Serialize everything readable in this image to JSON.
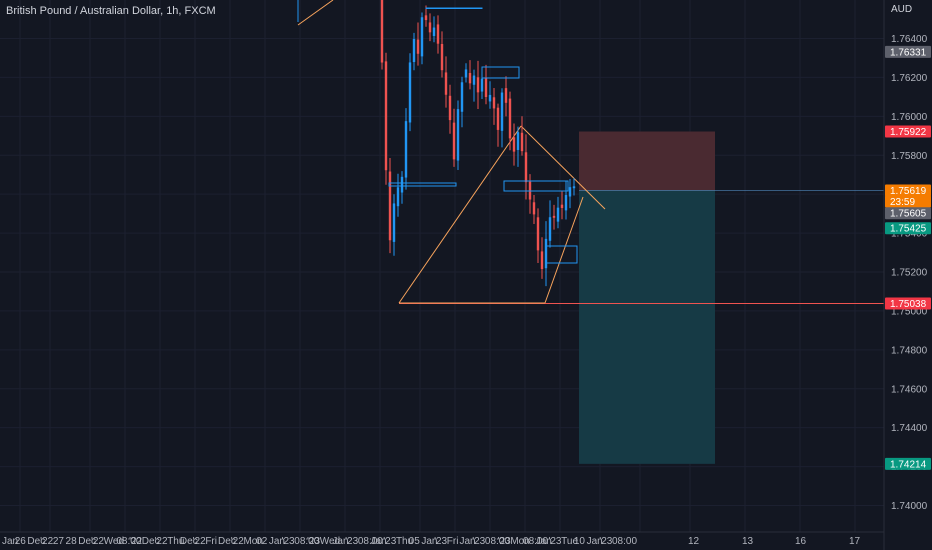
{
  "header": {
    "title": "British Pound / Australian Dollar, 1h, FXCM",
    "currency": "AUD"
  },
  "chart_data": {
    "type": "candlestick",
    "ylim": [
      1.7393,
      1.765
    ],
    "y_ticks": [
      "1.76400",
      "1.76200",
      "1.76000",
      "1.75800",
      "1.75600",
      "1.75400",
      "1.75200",
      "1.75000",
      "1.74800",
      "1.74600",
      "1.74400",
      "1.74200",
      "1.74000"
    ],
    "y_tick_values": [
      1.764,
      1.762,
      1.76,
      1.758,
      1.756,
      1.754,
      1.752,
      1.75,
      1.748,
      1.746,
      1.744,
      1.742,
      1.74
    ],
    "x_ticks": [
      "Jan",
      "26",
      "Dec",
      "'22",
      "27",
      "28",
      "Dec",
      "'22",
      "Wed",
      "08:00",
      "'22",
      "Dec",
      "'22",
      "Thu",
      "Dec",
      "'22",
      "Fri",
      "Dec",
      "'22",
      "Mon",
      "02",
      "Jan",
      "'23",
      "08:00",
      "'23",
      "Wed",
      "Jan",
      "'23",
      "08:00",
      "Jan",
      "'23",
      "Thu",
      "05",
      "Jan",
      "'23",
      "Fri",
      "Jan",
      "'23",
      "08:00",
      "'23",
      "Mon",
      "08:00",
      "Jan",
      "'23",
      "Tue",
      "10",
      "Jan",
      "'23",
      "08:00",
      "12",
      "13",
      "16",
      "17"
    ],
    "price_labels": [
      {
        "text": "1.76331",
        "value": 1.76331,
        "kind": "gray"
      },
      {
        "text": "1.75922",
        "value": 1.75922,
        "kind": "red"
      },
      {
        "text": "1.75619",
        "value": 1.75619,
        "kind": "orange"
      },
      {
        "text": "23:59",
        "value": 1.75619,
        "kind": "orange-sub"
      },
      {
        "text": "1.75605",
        "value": 1.75605,
        "kind": "gray"
      },
      {
        "text": "1.75425",
        "value": 1.75425,
        "kind": "teal"
      },
      {
        "text": "1.75038",
        "value": 1.75038,
        "kind": "red"
      },
      {
        "text": "1.74214",
        "value": 1.74214,
        "kind": "teal"
      }
    ],
    "position": {
      "entry": 1.75619,
      "stop": 1.75922,
      "target": 1.74214
    },
    "horizontal_lines": [
      1.75038
    ],
    "colors": {
      "background": "#131722",
      "up": "#2196f3",
      "down": "#ef5350",
      "loss_zone": "#4a2a31",
      "profit_zone": "#163a45",
      "trend": "#f7a35c",
      "level": "#ef5350",
      "grid": "#1c2030",
      "axis_text": "#b2b5be",
      "label_red": "#f23645",
      "label_teal": "#089981",
      "label_gray": "#5d606b",
      "label_orange": "#f57c00"
    }
  }
}
